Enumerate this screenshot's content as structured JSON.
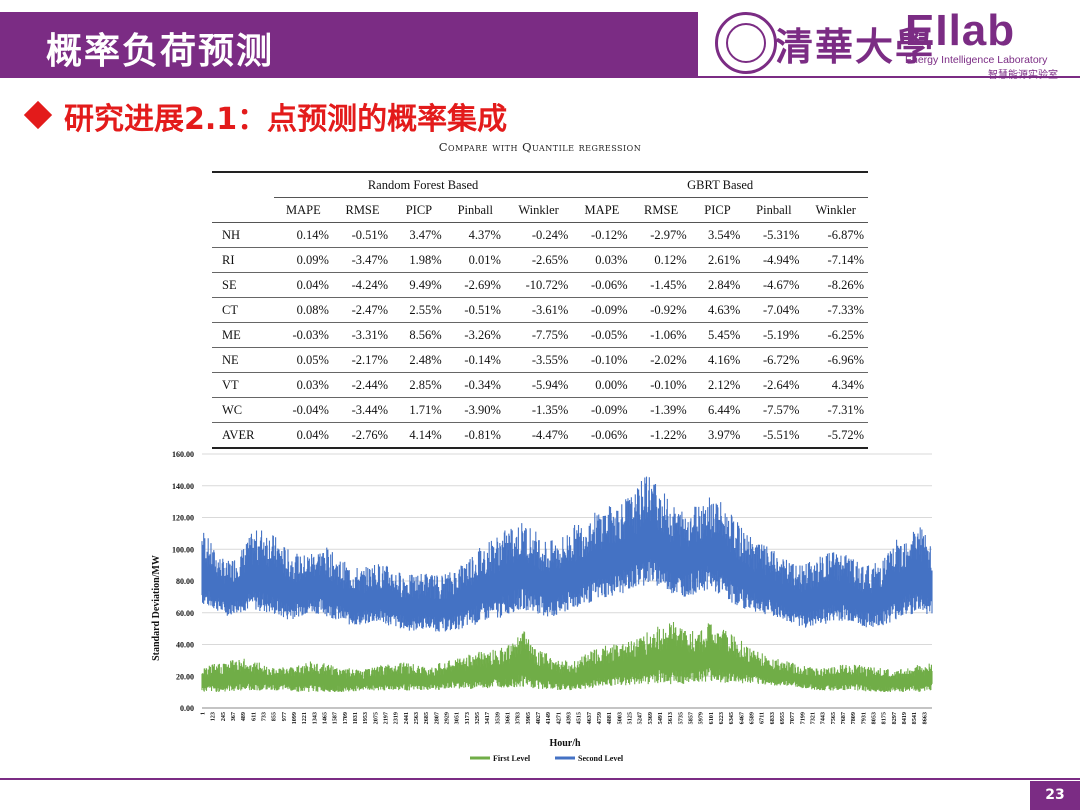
{
  "header": {
    "title": "概率负荷预测",
    "university_logo_text": "清華大學",
    "lab_logo": "EIlab",
    "lab_name_en": "Energy Intelligence Laboratory",
    "lab_name_cn": "智慧能源实验室"
  },
  "subtitle": "研究进展2.1：点预测的概率集成",
  "table": {
    "caption": "Compare with Quantile regression",
    "group_headers": [
      "Random Forest Based",
      "GBRT Based"
    ],
    "columns": [
      "MAPE",
      "RMSE",
      "PICP",
      "Pinball",
      "Winkler",
      "MAPE",
      "RMSE",
      "PICP",
      "Pinball",
      "Winkler"
    ],
    "rows": [
      {
        "name": "NH",
        "values": [
          "0.14%",
          "-0.51%",
          "3.47%",
          "4.37%",
          "-0.24%",
          "-0.12%",
          "-2.97%",
          "3.54%",
          "-5.31%",
          "-6.87%"
        ]
      },
      {
        "name": "RI",
        "values": [
          "0.09%",
          "-3.47%",
          "1.98%",
          "0.01%",
          "-2.65%",
          "0.03%",
          "0.12%",
          "2.61%",
          "-4.94%",
          "-7.14%"
        ]
      },
      {
        "name": "SE",
        "values": [
          "0.04%",
          "-4.24%",
          "9.49%",
          "-2.69%",
          "-10.72%",
          "-0.06%",
          "-1.45%",
          "2.84%",
          "-4.67%",
          "-8.26%"
        ]
      },
      {
        "name": "CT",
        "values": [
          "0.08%",
          "-2.47%",
          "2.55%",
          "-0.51%",
          "-3.61%",
          "-0.09%",
          "-0.92%",
          "4.63%",
          "-7.04%",
          "-7.33%"
        ]
      },
      {
        "name": "ME",
        "values": [
          "-0.03%",
          "-3.31%",
          "8.56%",
          "-3.26%",
          "-7.75%",
          "-0.05%",
          "-1.06%",
          "5.45%",
          "-5.19%",
          "-6.25%"
        ]
      },
      {
        "name": "NE",
        "values": [
          "0.05%",
          "-2.17%",
          "2.48%",
          "-0.14%",
          "-3.55%",
          "-0.10%",
          "-2.02%",
          "4.16%",
          "-6.72%",
          "-6.96%"
        ]
      },
      {
        "name": "VT",
        "values": [
          "0.03%",
          "-2.44%",
          "2.85%",
          "-0.34%",
          "-5.94%",
          "0.00%",
          "-0.10%",
          "2.12%",
          "-2.64%",
          "4.34%"
        ]
      },
      {
        "name": "WC",
        "values": [
          "-0.04%",
          "-3.44%",
          "1.71%",
          "-3.90%",
          "-1.35%",
          "-0.09%",
          "-1.39%",
          "6.44%",
          "-7.57%",
          "-7.31%"
        ]
      },
      {
        "name": "AVER",
        "values": [
          "0.04%",
          "-2.76%",
          "4.14%",
          "-0.81%",
          "-4.47%",
          "-0.06%",
          "-1.22%",
          "3.97%",
          "-5.51%",
          "-5.72%"
        ]
      }
    ]
  },
  "chart_data": {
    "type": "line",
    "xlabel": "Hour/h",
    "ylabel": "Standard Deviation/MW",
    "ylim": [
      0,
      160
    ],
    "yticks": [
      "0.00",
      "20.00",
      "40.00",
      "60.00",
      "80.00",
      "100.00",
      "120.00",
      "140.00",
      "160.00"
    ],
    "xlim": [
      1,
      8760
    ],
    "x_tick_step": 122,
    "grid": "horizontal",
    "legend_position": "bottom",
    "series": [
      {
        "name": "First Level",
        "color": "#70ad47",
        "sampled_every_hours": 146,
        "band_low": [
          10,
          10,
          10,
          11,
          11,
          11,
          11,
          11,
          10,
          10,
          10,
          10,
          10,
          11,
          11,
          11,
          11,
          11,
          11,
          11,
          12,
          12,
          12,
          12,
          13,
          13,
          13,
          12,
          12,
          11,
          11,
          12,
          13,
          14,
          14,
          15,
          15,
          15,
          15,
          15,
          16,
          16,
          16,
          15,
          15,
          15,
          14,
          14,
          13,
          12,
          11,
          11,
          11,
          11,
          10,
          10,
          10,
          10,
          10,
          11
        ],
        "band_high": [
          25,
          28,
          30,
          32,
          30,
          28,
          26,
          26,
          28,
          30,
          28,
          26,
          25,
          24,
          26,
          28,
          30,
          28,
          26,
          28,
          30,
          32,
          35,
          36,
          38,
          40,
          50,
          38,
          34,
          30,
          30,
          34,
          38,
          40,
          42,
          45,
          48,
          52,
          55,
          50,
          48,
          55,
          50,
          46,
          40,
          36,
          32,
          30,
          28,
          26,
          25,
          26,
          28,
          28,
          26,
          25,
          24,
          26,
          28,
          28
        ]
      },
      {
        "name": "Second Level",
        "color": "#4472c4",
        "sampled_every_hours": 146,
        "band_low": [
          65,
          62,
          58,
          60,
          62,
          60,
          58,
          55,
          58,
          60,
          58,
          55,
          52,
          52,
          54,
          52,
          50,
          48,
          50,
          48,
          48,
          50,
          52,
          55,
          56,
          60,
          62,
          60,
          56,
          58,
          62,
          65,
          68,
          70,
          72,
          75,
          78,
          76,
          72,
          70,
          72,
          75,
          70,
          65,
          62,
          60,
          58,
          55,
          52,
          50,
          52,
          54,
          55,
          52,
          50,
          52,
          55,
          58,
          60,
          58
        ],
        "band_high": [
          115,
          100,
          92,
          98,
          110,
          115,
          108,
          100,
          96,
          100,
          102,
          95,
          90,
          88,
          92,
          90,
          86,
          84,
          86,
          84,
          86,
          92,
          100,
          105,
          110,
          115,
          118,
          112,
          105,
          108,
          115,
          120,
          125,
          128,
          132,
          136,
          150,
          140,
          128,
          125,
          130,
          135,
          130,
          120,
          110,
          105,
          100,
          95,
          90,
          92,
          96,
          100,
          98,
          92,
          90,
          95,
          105,
          112,
          118,
          100
        ]
      }
    ]
  },
  "footer": {
    "page_number": "23"
  }
}
